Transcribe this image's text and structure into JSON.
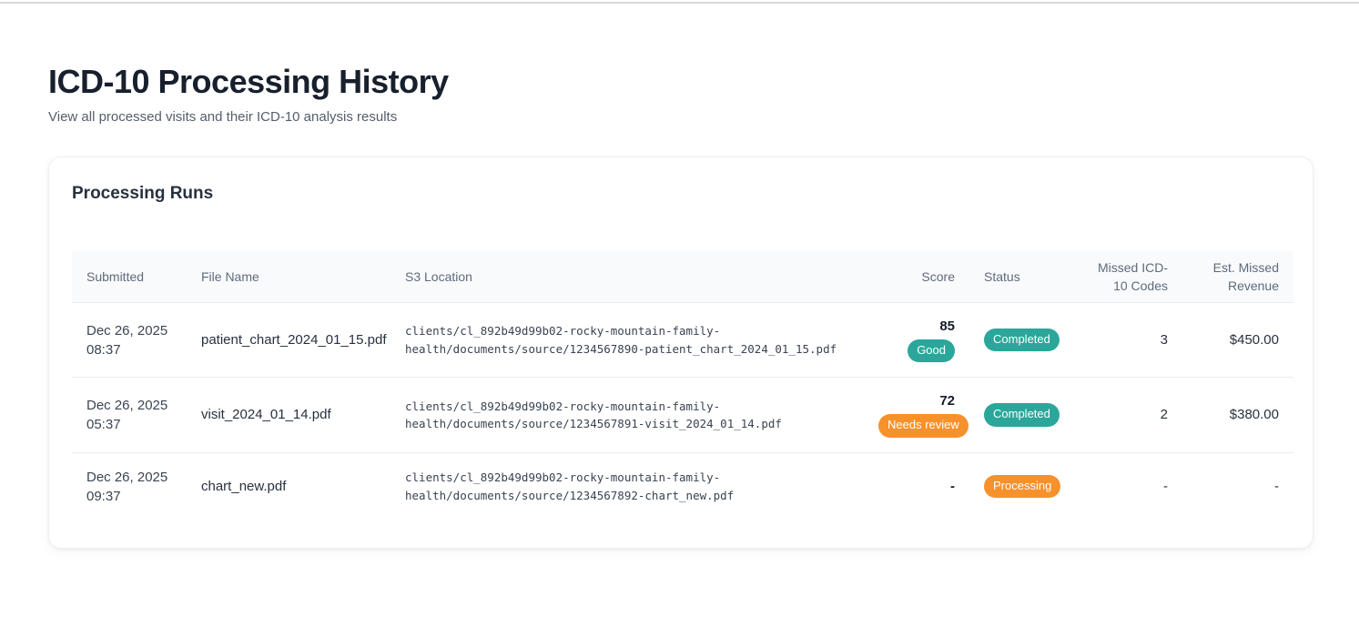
{
  "page": {
    "title": "ICD-10 Processing History",
    "subtitle": "View all processed visits and their ICD-10 analysis results"
  },
  "card": {
    "title": "Processing Runs"
  },
  "colors": {
    "badge_teal": "#2aa79a",
    "badge_orange": "#f7912b",
    "table_header_bg": "#f9fafb",
    "row_border": "#e9ebee"
  },
  "table": {
    "columns": [
      "Submitted",
      "File Name",
      "S3 Location",
      "Score",
      "Status",
      "Missed ICD-10 Codes",
      "Est. Missed Revenue"
    ],
    "rows": [
      {
        "submitted": {
          "date": "Dec 26, 2025",
          "time": "08:37"
        },
        "file_name": "patient_chart_2024_01_15.pdf",
        "s3_location": "clients/cl_892b49d99b02-rocky-mountain-family-health/documents/source/1234567890-patient_chart_2024_01_15.pdf",
        "score": "85",
        "score_badge": "Good",
        "status_badge": "Completed",
        "missed_codes": "3",
        "est_missed_revenue": "$450.00"
      },
      {
        "submitted": {
          "date": "Dec 26, 2025",
          "time": "05:37"
        },
        "file_name": "visit_2024_01_14.pdf",
        "s3_location": "clients/cl_892b49d99b02-rocky-mountain-family-health/documents/source/1234567891-visit_2024_01_14.pdf",
        "score": "72",
        "score_badge": "Needs review",
        "status_badge": "Completed",
        "missed_codes": "2",
        "est_missed_revenue": "$380.00"
      },
      {
        "submitted": {
          "date": "Dec 26, 2025",
          "time": "09:37"
        },
        "file_name": "chart_new.pdf",
        "s3_location": "clients/cl_892b49d99b02-rocky-mountain-family-health/documents/source/1234567892-chart_new.pdf",
        "score": "-",
        "status_badge": "Processing",
        "missed_codes": "-",
        "est_missed_revenue": "-"
      }
    ]
  }
}
